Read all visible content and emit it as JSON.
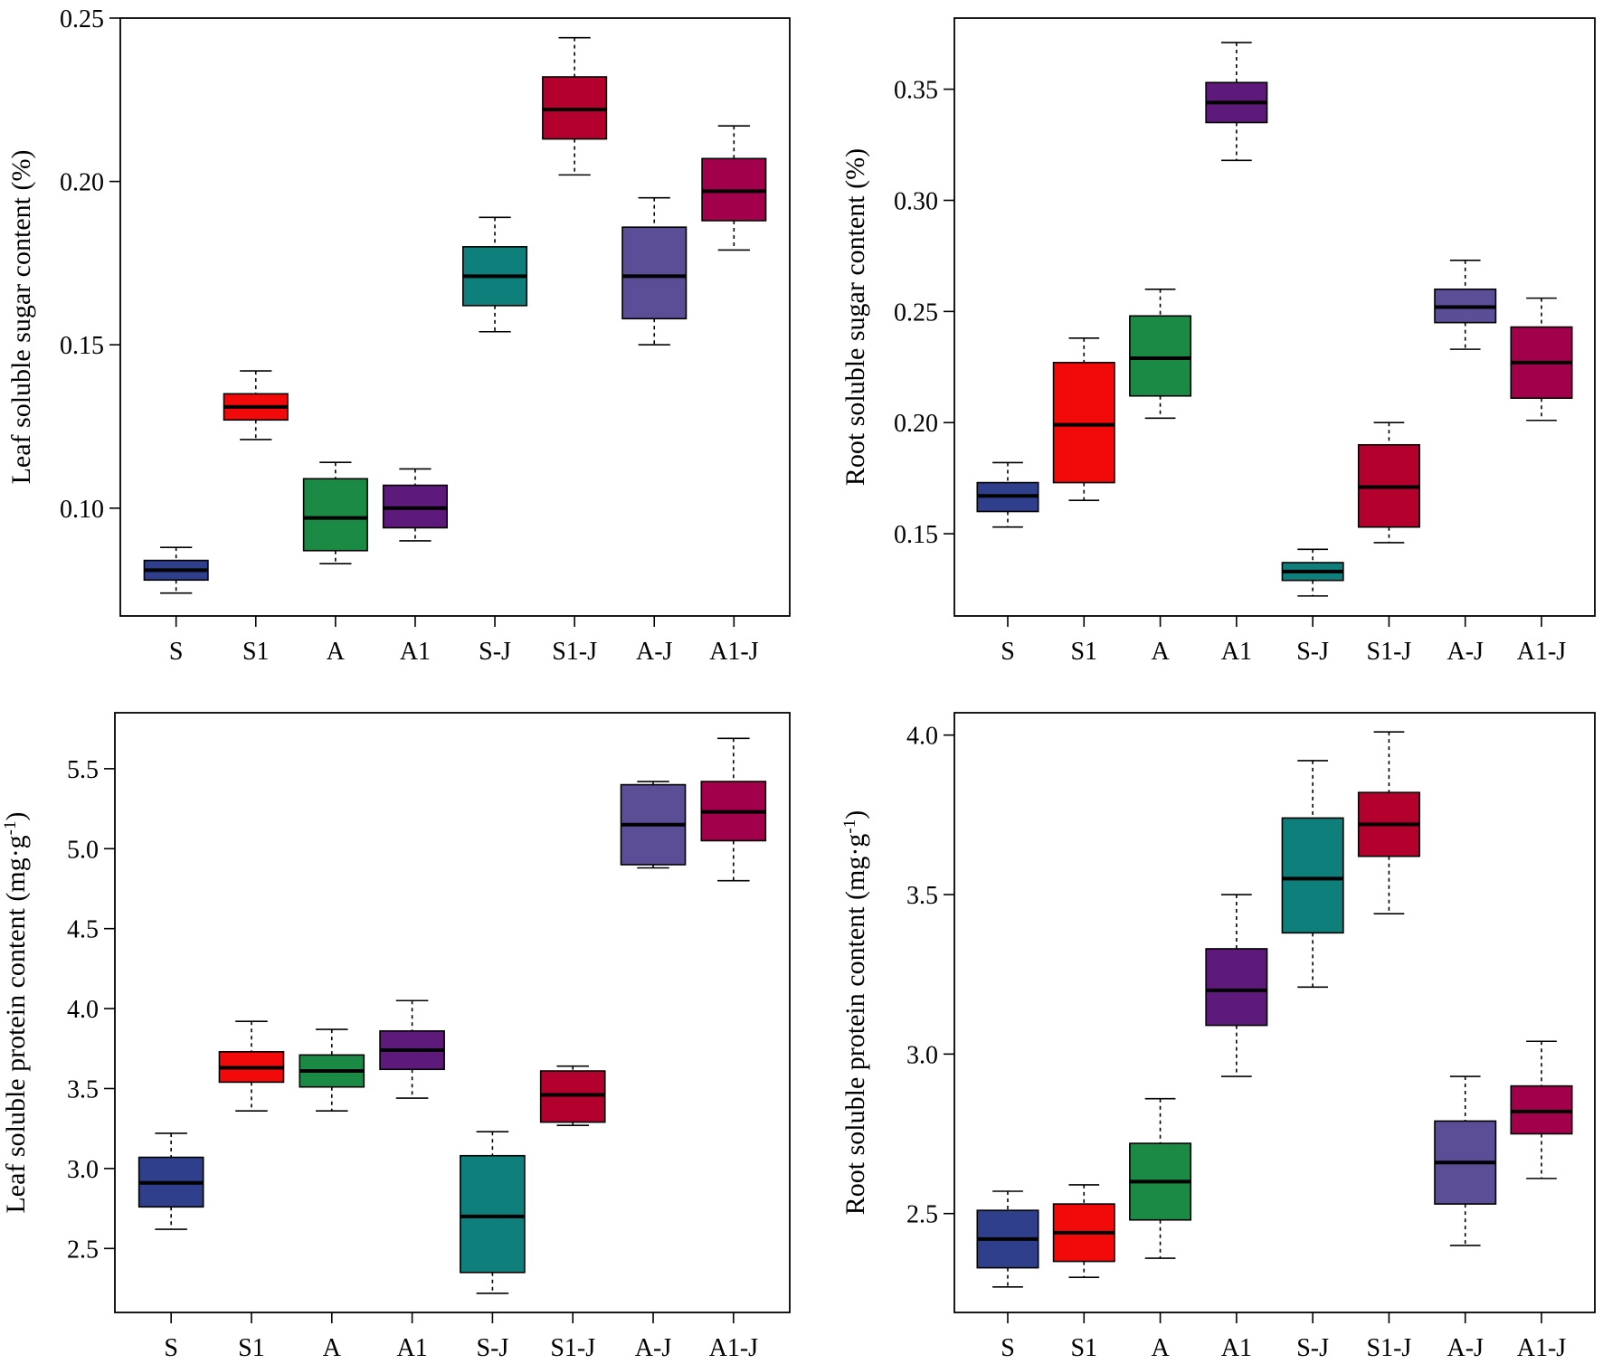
{
  "chart_data": [
    {
      "type": "boxplot",
      "ylabel": "Leaf soluble sugar content (%)",
      "ylabel_sup": "",
      "ylabel_suffix": "",
      "ylim": [
        0.067,
        0.25
      ],
      "yticks": [
        0.1,
        0.15,
        0.2,
        0.25
      ],
      "ytick_labels": [
        "0.10",
        "0.15",
        "0.20",
        "0.25"
      ],
      "categories": [
        "S",
        "S1",
        "A",
        "A1",
        "S-J",
        "S1-J",
        "A-J",
        "A1-J"
      ],
      "colors": [
        "#2F3F8C",
        "#F20A0A",
        "#1A8A45",
        "#5E1A7A",
        "#0E7F7A",
        "#B3002D",
        "#5B4D96",
        "#A3004C"
      ],
      "boxes": [
        {
          "min": 0.074,
          "q1": 0.078,
          "median": 0.081,
          "q3": 0.084,
          "max": 0.088
        },
        {
          "min": 0.121,
          "q1": 0.127,
          "median": 0.131,
          "q3": 0.135,
          "max": 0.142
        },
        {
          "min": 0.083,
          "q1": 0.087,
          "median": 0.097,
          "q3": 0.109,
          "max": 0.114
        },
        {
          "min": 0.09,
          "q1": 0.094,
          "median": 0.1,
          "q3": 0.107,
          "max": 0.112
        },
        {
          "min": 0.154,
          "q1": 0.162,
          "median": 0.171,
          "q3": 0.18,
          "max": 0.189
        },
        {
          "min": 0.202,
          "q1": 0.213,
          "median": 0.222,
          "q3": 0.232,
          "max": 0.244
        },
        {
          "min": 0.15,
          "q1": 0.158,
          "median": 0.171,
          "q3": 0.186,
          "max": 0.195
        },
        {
          "min": 0.179,
          "q1": 0.188,
          "median": 0.197,
          "q3": 0.207,
          "max": 0.217
        }
      ]
    },
    {
      "type": "boxplot",
      "ylabel": "Root soluble sugar content (%)",
      "ylabel_sup": "",
      "ylabel_suffix": "",
      "ylim": [
        0.113,
        0.382
      ],
      "yticks": [
        0.15,
        0.2,
        0.25,
        0.3,
        0.35
      ],
      "ytick_labels": [
        "0.15",
        "0.20",
        "0.25",
        "0.30",
        "0.35"
      ],
      "categories": [
        "S",
        "S1",
        "A",
        "A1",
        "S-J",
        "S1-J",
        "A-J",
        "A1-J"
      ],
      "colors": [
        "#2F3F8C",
        "#F20A0A",
        "#1A8A45",
        "#5E1A7A",
        "#0E7F7A",
        "#B3002D",
        "#5B4D96",
        "#A3004C"
      ],
      "boxes": [
        {
          "min": 0.153,
          "q1": 0.16,
          "median": 0.167,
          "q3": 0.173,
          "max": 0.182
        },
        {
          "min": 0.165,
          "q1": 0.173,
          "median": 0.199,
          "q3": 0.227,
          "max": 0.238
        },
        {
          "min": 0.202,
          "q1": 0.212,
          "median": 0.229,
          "q3": 0.248,
          "max": 0.26
        },
        {
          "min": 0.318,
          "q1": 0.335,
          "median": 0.344,
          "q3": 0.353,
          "max": 0.371
        },
        {
          "min": 0.122,
          "q1": 0.129,
          "median": 0.133,
          "q3": 0.137,
          "max": 0.143
        },
        {
          "min": 0.146,
          "q1": 0.153,
          "median": 0.171,
          "q3": 0.19,
          "max": 0.2
        },
        {
          "min": 0.233,
          "q1": 0.245,
          "median": 0.252,
          "q3": 0.26,
          "max": 0.273
        },
        {
          "min": 0.201,
          "q1": 0.211,
          "median": 0.227,
          "q3": 0.243,
          "max": 0.256
        }
      ]
    },
    {
      "type": "boxplot",
      "ylabel": "Leaf soluble protein content (mg·g",
      "ylabel_sup": "-1",
      "ylabel_suffix": ")",
      "ylim": [
        2.1,
        5.85
      ],
      "yticks": [
        2.5,
        3.0,
        3.5,
        4.0,
        4.5,
        5.0,
        5.5
      ],
      "ytick_labels": [
        "2.5",
        "3.0",
        "3.5",
        "4.0",
        "4.5",
        "5.0",
        "5.5"
      ],
      "categories": [
        "S",
        "S1",
        "A",
        "A1",
        "S-J",
        "S1-J",
        "A-J",
        "A1-J"
      ],
      "colors": [
        "#2F3F8C",
        "#F20A0A",
        "#1A8A45",
        "#5E1A7A",
        "#0E7F7A",
        "#B3002D",
        "#5B4D96",
        "#A3004C"
      ],
      "boxes": [
        {
          "min": 2.62,
          "q1": 2.76,
          "median": 2.91,
          "q3": 3.07,
          "max": 3.22
        },
        {
          "min": 3.36,
          "q1": 3.54,
          "median": 3.63,
          "q3": 3.73,
          "max": 3.92
        },
        {
          "min": 3.36,
          "q1": 3.51,
          "median": 3.61,
          "q3": 3.71,
          "max": 3.87
        },
        {
          "min": 3.44,
          "q1": 3.62,
          "median": 3.74,
          "q3": 3.86,
          "max": 4.05
        },
        {
          "min": 2.22,
          "q1": 2.35,
          "median": 2.7,
          "q3": 3.08,
          "max": 3.23
        },
        {
          "min": 3.27,
          "q1": 3.29,
          "median": 3.46,
          "q3": 3.61,
          "max": 3.64
        },
        {
          "min": 4.88,
          "q1": 4.9,
          "median": 5.15,
          "q3": 5.4,
          "max": 5.42
        },
        {
          "min": 4.8,
          "q1": 5.05,
          "median": 5.23,
          "q3": 5.42,
          "max": 5.69
        }
      ]
    },
    {
      "type": "boxplot",
      "ylabel": "Root soluble protein content (mg·g",
      "ylabel_sup": "-1",
      "ylabel_suffix": ")",
      "ylim": [
        2.19,
        4.07
      ],
      "yticks": [
        2.5,
        3.0,
        3.5,
        4.0
      ],
      "ytick_labels": [
        "2.5",
        "3.0",
        "3.5",
        "4.0"
      ],
      "categories": [
        "S",
        "S1",
        "A",
        "A1",
        "S-J",
        "S1-J",
        "A-J",
        "A1-J"
      ],
      "colors": [
        "#2F3F8C",
        "#F20A0A",
        "#1A8A45",
        "#5E1A7A",
        "#0E7F7A",
        "#B3002D",
        "#5B4D96",
        "#A3004C"
      ],
      "boxes": [
        {
          "min": 2.27,
          "q1": 2.33,
          "median": 2.42,
          "q3": 2.51,
          "max": 2.57
        },
        {
          "min": 2.3,
          "q1": 2.35,
          "median": 2.44,
          "q3": 2.53,
          "max": 2.59
        },
        {
          "min": 2.36,
          "q1": 2.48,
          "median": 2.6,
          "q3": 2.72,
          "max": 2.86
        },
        {
          "min": 2.93,
          "q1": 3.09,
          "median": 3.2,
          "q3": 3.33,
          "max": 3.5
        },
        {
          "min": 3.21,
          "q1": 3.38,
          "median": 3.55,
          "q3": 3.74,
          "max": 3.92
        },
        {
          "min": 3.44,
          "q1": 3.62,
          "median": 3.72,
          "q3": 3.82,
          "max": 4.01
        },
        {
          "min": 2.4,
          "q1": 2.53,
          "median": 2.66,
          "q3": 2.79,
          "max": 2.93
        },
        {
          "min": 2.61,
          "q1": 2.75,
          "median": 2.82,
          "q3": 2.9,
          "max": 3.04
        }
      ]
    }
  ]
}
